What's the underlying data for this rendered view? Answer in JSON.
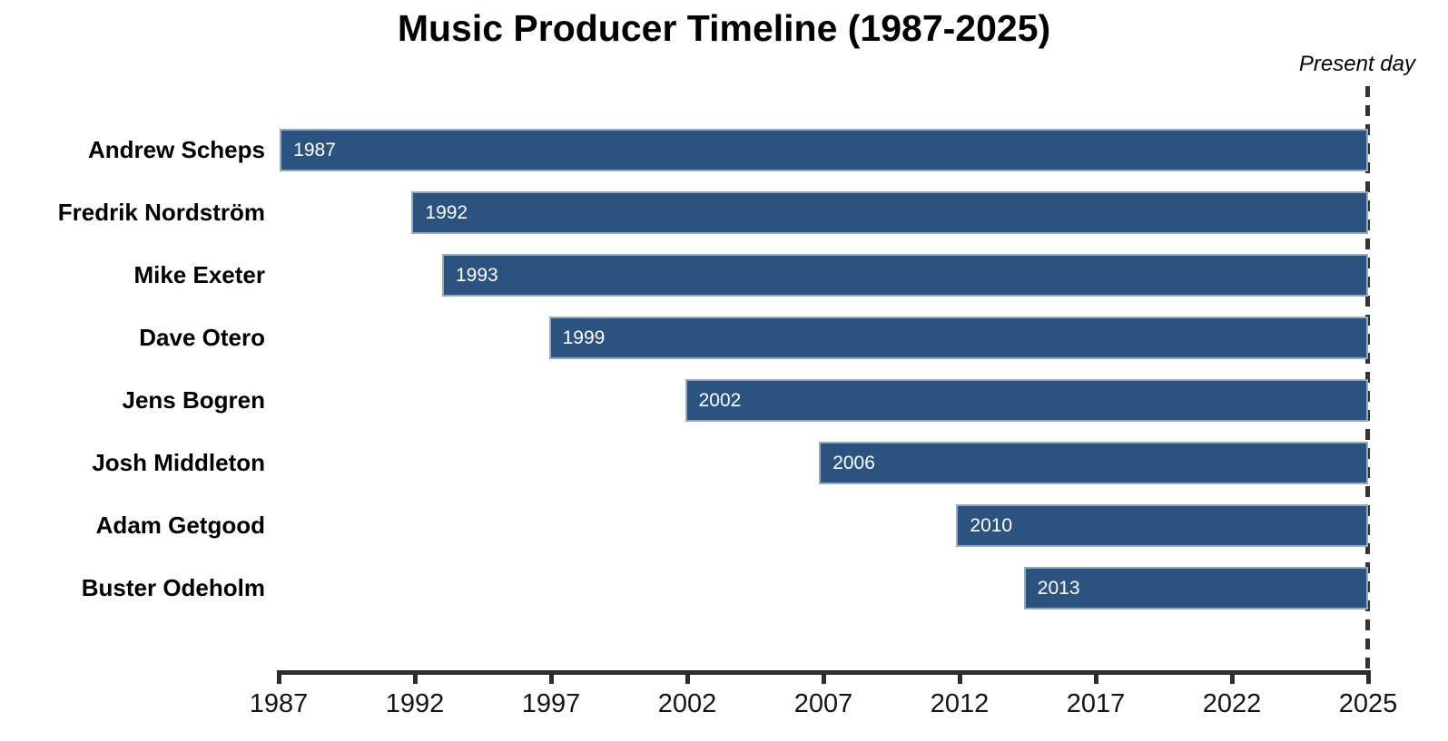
{
  "chart_data": {
    "type": "bar",
    "orientation": "horizontal",
    "variant": "timeline",
    "title": "Music Producer Timeline (1987-2025)",
    "annotation": {
      "text": "Present day",
      "style": "italic",
      "at_year": 2025
    },
    "categories": [
      "Andrew Scheps",
      "Fredrik Nordström",
      "Mike Exeter",
      "Dave Otero",
      "Jens Bogren",
      "Josh Middleton",
      "Adam Getgood",
      "Buster Odeholm"
    ],
    "bars": [
      {
        "name": "Andrew Scheps",
        "start_year": 1987,
        "end_year": 2025,
        "bar_label": "1987",
        "start_frac": 0.001
      },
      {
        "name": "Fredrik Nordström",
        "start_year": 1992,
        "end_year": 2025,
        "bar_label": "1992",
        "start_frac": 0.122
      },
      {
        "name": "Mike Exeter",
        "start_year": 1993,
        "end_year": 2025,
        "bar_label": "1993",
        "start_frac": 0.15
      },
      {
        "name": "Dave Otero",
        "start_year": 1999,
        "end_year": 2025,
        "bar_label": "1999",
        "start_frac": 0.248
      },
      {
        "name": "Jens Bogren",
        "start_year": 2002,
        "end_year": 2025,
        "bar_label": "2002",
        "start_frac": 0.373
      },
      {
        "name": "Josh Middleton",
        "start_year": 2006,
        "end_year": 2025,
        "bar_label": "2006",
        "start_frac": 0.496
      },
      {
        "name": "Adam Getgood",
        "start_year": 2010,
        "end_year": 2025,
        "bar_label": "2010",
        "start_frac": 0.622
      },
      {
        "name": "Buster Odeholm",
        "start_year": 2013,
        "end_year": 2025,
        "bar_label": "2013",
        "start_frac": 0.684
      }
    ],
    "x_axis": {
      "tick_labels": [
        "1987",
        "1992",
        "1997",
        "2002",
        "2007",
        "2012",
        "2017",
        "2022",
        "2025"
      ],
      "range": [
        1987,
        2025
      ],
      "uniform_tick_spacing": true
    },
    "grid": false,
    "legend": false,
    "xlabel": "",
    "ylabel": "",
    "colors": {
      "bar_fill": "#2c5380",
      "bar_edge": "#97a9bd",
      "bar_text": "#ffffff",
      "axis": "#2d2d2d",
      "dashed_line": "#333333",
      "text": "#000000",
      "background": "#ffffff"
    }
  }
}
